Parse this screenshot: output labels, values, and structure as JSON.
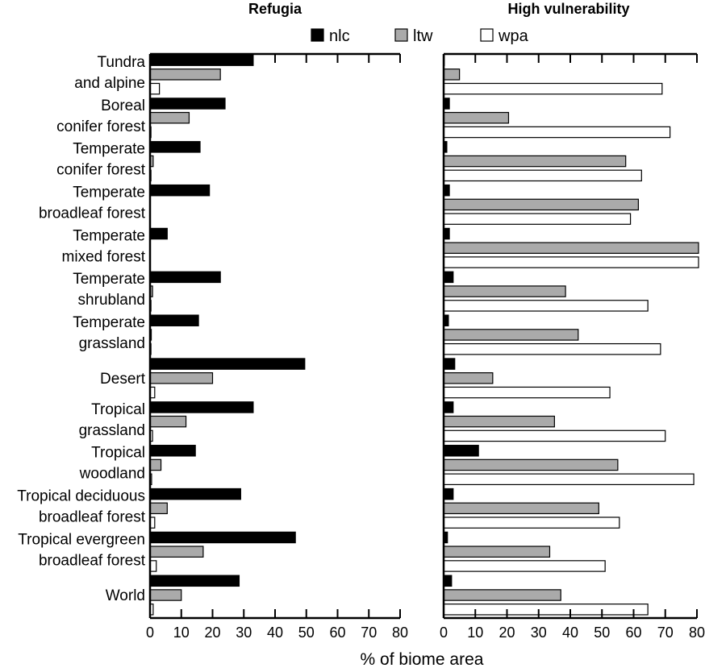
{
  "chart_data": {
    "type": "bar",
    "orientation": "horizontal",
    "xlabel": "% of biome area",
    "xlim": [
      0,
      80
    ],
    "xticks": [
      "0",
      "10",
      "20",
      "30",
      "40",
      "50",
      "60",
      "70",
      "80"
    ],
    "legend": {
      "position": "top-center",
      "entries": [
        "nlc",
        "ltw",
        "wpa"
      ]
    },
    "colors": {
      "nlc": "#000000",
      "ltw": "#aaaaaa",
      "wpa": "#ffffff",
      "outline": "#000000"
    },
    "categories": [
      [
        "Tundra",
        "and alpine"
      ],
      [
        "Boreal",
        "conifer forest"
      ],
      [
        "Temperate",
        "conifer forest"
      ],
      [
        "Temperate",
        "broadleaf forest"
      ],
      [
        "Temperate",
        "mixed forest"
      ],
      [
        "Temperate",
        "shrubland"
      ],
      [
        "Temperate",
        "grassland"
      ],
      [
        "Desert"
      ],
      [
        "Tropical",
        "grassland"
      ],
      [
        "Tropical",
        "woodland"
      ],
      [
        "Tropical deciduous",
        "broadleaf forest"
      ],
      [
        "Tropical evergreen",
        "broadleaf forest"
      ],
      [
        "World"
      ]
    ],
    "panels": [
      {
        "title": "Refugia",
        "series": [
          {
            "name": "nlc",
            "values": [
              33,
              24,
              16,
              19,
              5.5,
              22.5,
              15.5,
              49.5,
              33,
              14.5,
              29,
              46.5,
              28.5
            ]
          },
          {
            "name": "ltw",
            "values": [
              22.5,
              12.5,
              1,
              0,
              0,
              0.8,
              0.4,
              20,
              11.5,
              3.5,
              5.5,
              17,
              10
            ]
          },
          {
            "name": "wpa",
            "values": [
              3,
              0.3,
              0.3,
              0,
              0,
              0.3,
              0.3,
              1.5,
              0.8,
              0.5,
              1.5,
              2,
              1
            ]
          }
        ]
      },
      {
        "title": "High vulnerability",
        "series": [
          {
            "name": "nlc",
            "values": [
              0.2,
              1.8,
              1,
              1.8,
              1.8,
              3,
              1.5,
              3.5,
              3,
              11,
              3,
              1.2,
              2.5
            ]
          },
          {
            "name": "ltw",
            "values": [
              5,
              20.5,
              57.5,
              61.5,
              80.5,
              38.5,
              42.5,
              15.5,
              35,
              55,
              49,
              33.5,
              37
            ]
          },
          {
            "name": "wpa",
            "values": [
              69,
              71.5,
              62.5,
              59,
              80.5,
              64.5,
              68.5,
              52.5,
              70,
              79,
              55.5,
              51,
              64.5
            ]
          }
        ]
      }
    ]
  }
}
